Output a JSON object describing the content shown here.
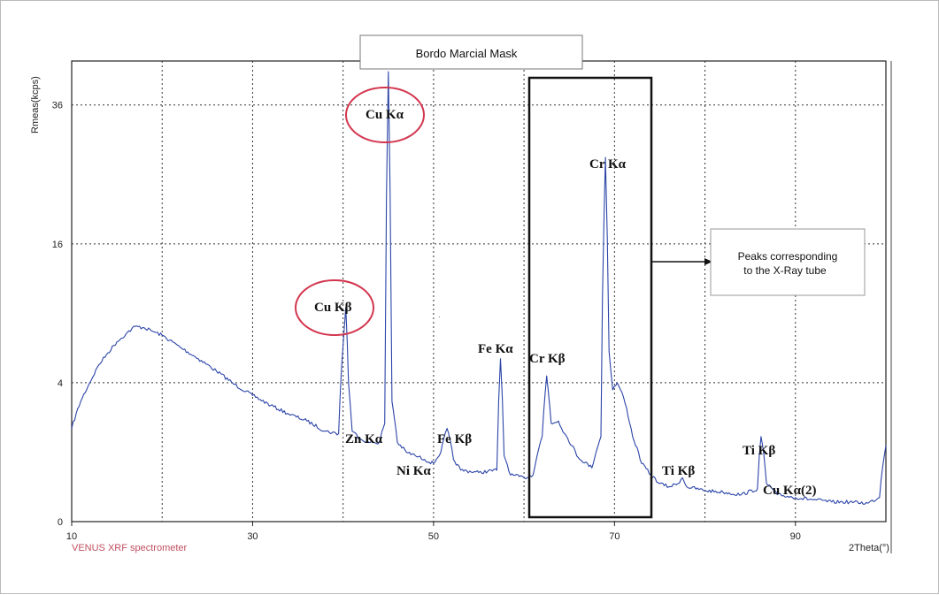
{
  "chart_data": {
    "type": "line",
    "title": "Bordo Marcial Mask",
    "xlabel": "2Theta(°)",
    "ylabel": "Rmeas(kcps)",
    "x_ticks": [
      "10",
      "30",
      "50",
      "70",
      "90"
    ],
    "y_ticks": [
      "0",
      "4",
      "16",
      "36"
    ],
    "xlim": [
      10,
      100
    ],
    "y_scale": "sqrt",
    "ylim": [
      0,
      44
    ],
    "grid": true,
    "series": [
      {
        "color": "#2b44a8",
        "x": [
          10,
          11,
          12,
          13,
          14,
          15,
          16,
          17,
          18,
          19,
          20,
          22,
          24,
          26,
          28,
          30,
          32,
          34,
          36,
          38,
          39.5,
          40.3,
          40.6,
          41.0,
          42,
          43,
          44,
          44.6,
          45.0,
          45.4,
          46,
          47,
          48,
          49,
          50,
          50.8,
          51.5,
          52.2,
          53,
          55,
          57,
          57.4,
          57.8,
          58.5,
          60,
          61,
          62,
          62.5,
          63,
          63.8,
          64.5,
          66,
          67.5,
          68.5,
          69.0,
          69.4,
          69.8,
          70.3,
          71,
          72,
          73,
          74,
          75,
          76,
          77,
          77.5,
          78,
          80,
          82,
          84,
          85.8,
          86.2,
          86.8,
          88,
          90,
          92,
          94,
          96,
          98,
          99.3,
          100
        ],
        "y": [
          1.8,
          3.0,
          4.0,
          5.1,
          5.9,
          6.7,
          7.3,
          7.9,
          7.8,
          7.5,
          7.2,
          6.3,
          5.5,
          4.7,
          3.9,
          3.3,
          2.8,
          2.4,
          2.1,
          1.7,
          1.6,
          9.5,
          4.0,
          1.7,
          1.4,
          1.3,
          1.3,
          2.0,
          42.0,
          3.0,
          1.3,
          1.0,
          0.9,
          0.8,
          0.7,
          1.0,
          1.8,
          0.8,
          0.55,
          0.5,
          0.55,
          5.5,
          0.9,
          0.45,
          0.4,
          0.45,
          1.5,
          4.4,
          2.0,
          2.1,
          1.6,
          0.85,
          0.6,
          1.5,
          27.5,
          6.0,
          3.6,
          4.0,
          3.2,
          1.5,
          0.7,
          0.45,
          0.3,
          0.25,
          0.3,
          0.4,
          0.25,
          0.2,
          0.18,
          0.15,
          0.22,
          1.5,
          0.3,
          0.15,
          0.12,
          0.1,
          0.08,
          0.08,
          0.07,
          0.12,
          1.2
        ]
      }
    ],
    "annotations": [
      "Cu Kα",
      "Cu Kβ",
      "Cr Kα",
      "Cr Kβ",
      "Fe Kα",
      "Fe Kβ",
      "Zn Kα",
      "Ni Kα",
      "Ti Kβ",
      "Ti Kβ",
      "Cu Kα(2)"
    ]
  },
  "note": "Peaks corresponding\nto the X-Ray tube",
  "footer": "VENUS XRF spectrometer",
  "colors": {
    "line": "#2b44a8",
    "circle": "#d3364f",
    "grid": "#333333"
  }
}
